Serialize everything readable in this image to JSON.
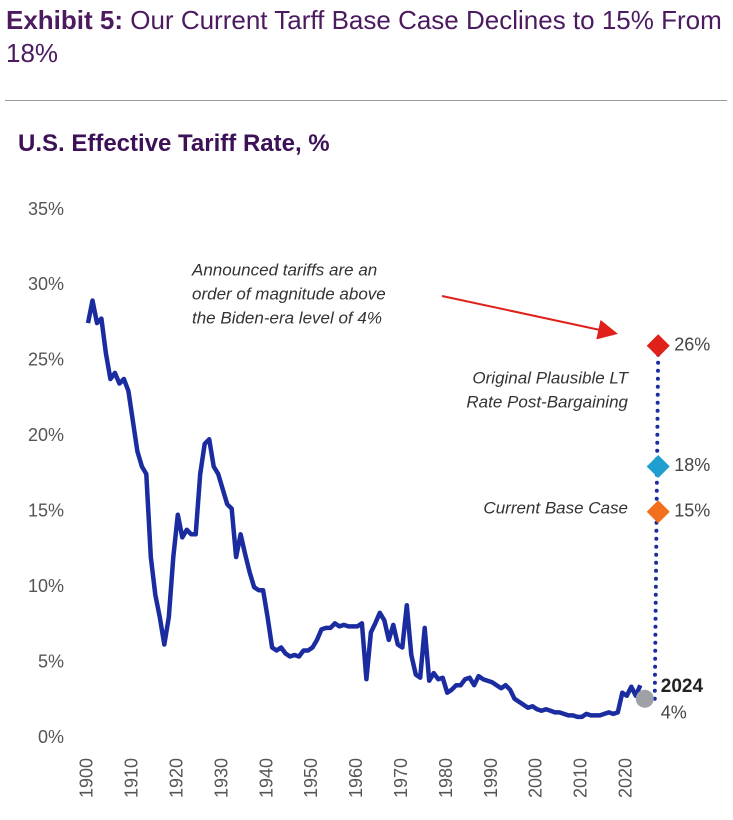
{
  "chart_data": {
    "type": "line",
    "title_lead": "Exhibit 5:",
    "title": "Our Current Tarff Base Case Declines to 15% From 18%",
    "subtitle": "U.S. Effective Tariff Rate, %",
    "x": [
      1900,
      1901,
      1902,
      1903,
      1904,
      1905,
      1906,
      1907,
      1908,
      1909,
      1910,
      1911,
      1912,
      1913,
      1914,
      1915,
      1916,
      1917,
      1918,
      1919,
      1920,
      1921,
      1922,
      1923,
      1924,
      1925,
      1926,
      1927,
      1928,
      1929,
      1930,
      1931,
      1932,
      1933,
      1934,
      1935,
      1936,
      1937,
      1938,
      1939,
      1940,
      1941,
      1942,
      1943,
      1944,
      1945,
      1946,
      1947,
      1948,
      1949,
      1950,
      1951,
      1952,
      1953,
      1954,
      1955,
      1956,
      1957,
      1958,
      1959,
      1960,
      1961,
      1962,
      1963,
      1964,
      1965,
      1966,
      1967,
      1968,
      1969,
      1970,
      1971,
      1972,
      1973,
      1974,
      1975,
      1976,
      1977,
      1978,
      1979,
      1980,
      1981,
      1982,
      1983,
      1984,
      1985,
      1986,
      1987,
      1988,
      1989,
      1990,
      1991,
      1992,
      1993,
      1994,
      1995,
      1996,
      1997,
      1998,
      1999,
      2000,
      2001,
      2002,
      2003,
      2004,
      2005,
      2006,
      2007,
      2008,
      2009,
      2010,
      2011,
      2012,
      2013,
      2014,
      2015,
      2016,
      2017,
      2018,
      2019,
      2020,
      2021,
      2022,
      2023
    ],
    "series": [
      {
        "color": "#1b2ca0",
        "values": [
          27.5,
          29,
          27.5,
          27.8,
          25.5,
          23.8,
          24.2,
          23.5,
          23.8,
          23.0,
          21,
          19,
          18,
          17.5,
          12,
          9.5,
          8,
          6.2,
          8,
          12,
          14.8,
          13.3,
          13.8,
          13.5,
          13.5,
          17.5,
          19.5,
          19.8,
          18,
          17.5,
          16.5,
          15.5,
          15.2,
          12,
          13.5,
          12.2,
          11,
          10,
          9.8,
          9.8,
          8,
          6,
          5.8,
          6,
          5.6,
          5.4,
          5.5,
          5.4,
          5.8,
          5.8,
          6,
          6.5,
          7.2,
          7.3,
          7.3,
          7.6,
          7.4,
          7.5,
          7.4,
          7.4,
          7.4,
          7.6,
          3.9,
          7,
          7.6,
          8.3,
          7.8,
          6.5,
          7.5,
          6.2,
          6.0,
          8.8,
          5.5,
          4.2,
          4.0,
          7.3,
          3.8,
          4.3,
          3.9,
          4.0,
          3.0,
          3.2,
          3.5,
          3.5,
          3.9,
          4.0,
          3.5,
          4.1,
          3.9,
          3.8,
          3.7,
          3.5,
          3.3,
          3.5,
          3.2,
          2.6,
          2.4,
          2.2,
          2.0,
          2.1,
          1.9,
          1.8,
          1.9,
          1.8,
          1.7,
          1.7,
          1.6,
          1.5,
          1.5,
          1.4,
          1.4,
          1.6,
          1.5,
          1.5,
          1.5,
          1.6,
          1.7,
          1.6,
          1.7,
          3.0,
          2.8,
          3.4,
          2.8,
          3.5
        ]
      }
    ],
    "markers": [
      {
        "shape": "circle",
        "x": 2024,
        "y": 2.6,
        "color": "#9ea2a8"
      },
      {
        "shape": "diamond",
        "x": 2027,
        "y": 26,
        "color": "#e0201b",
        "value_label": "26%"
      },
      {
        "shape": "diamond",
        "x": 2027,
        "y": 18,
        "color": "#1f9fcf",
        "value_label": "18%"
      },
      {
        "shape": "diamond",
        "x": 2027,
        "y": 15,
        "color": "#f26f1e",
        "value_label": "15%"
      }
    ],
    "connector_color": "#1b2ca0",
    "xlim": [
      1897,
      2030
    ],
    "xticks": [
      1900,
      1910,
      1920,
      1930,
      1940,
      1950,
      1960,
      1970,
      1980,
      1990,
      2000,
      2010,
      2020
    ],
    "ylim": [
      0,
      35
    ],
    "yticks": [
      {
        "value": 0,
        "label": "0%"
      },
      {
        "value": 5,
        "label": "5%"
      },
      {
        "value": 10,
        "label": "10%"
      },
      {
        "value": 15,
        "label": "15%"
      },
      {
        "value": 20,
        "label": "20%"
      },
      {
        "value": 25,
        "label": "25%"
      },
      {
        "value": 30,
        "label": "30%"
      },
      {
        "value": 35,
        "label": "35%"
      }
    ],
    "grid": false,
    "annotations": {
      "announced": [
        "Announced tariffs are an",
        "order of magnitude above",
        "the Biden-era level of 4%"
      ],
      "original": [
        "Original Plausible LT",
        "Rate Post-Bargaining"
      ],
      "current": "Current Base Case",
      "year": "2024",
      "level": "4%"
    }
  }
}
